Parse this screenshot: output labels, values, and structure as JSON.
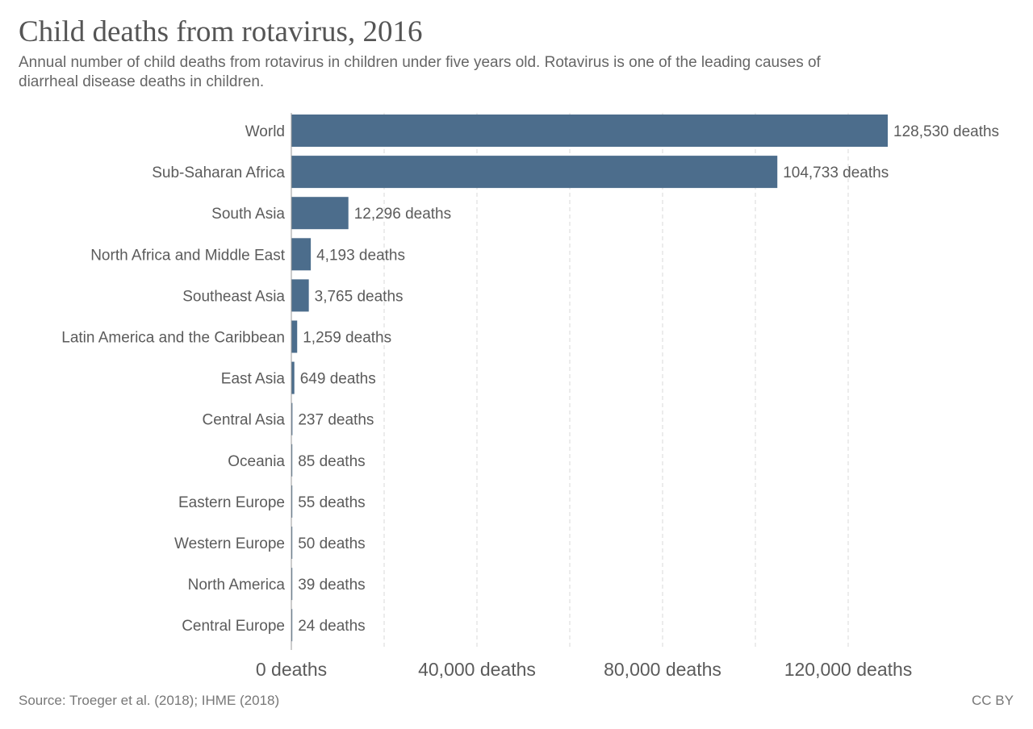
{
  "header": {
    "title": "Child deaths from rotavirus, 2016",
    "subtitle": "Annual number of child deaths from rotavirus in children under five years old. Rotavirus is one of the leading causes of diarrheal disease deaths in children."
  },
  "footer": {
    "source": "Source: Troeger et al. (2018); IHME (2018)",
    "license": "CC BY"
  },
  "colors": {
    "bar": "#4c6d8c",
    "grid": "#d9d9d9",
    "text": "#5b5b5b"
  },
  "chart_data": {
    "type": "bar",
    "orientation": "horizontal",
    "title": "Child deaths from rotavirus, 2016",
    "categories": [
      "World",
      "Sub-Saharan Africa",
      "South Asia",
      "North Africa and Middle East",
      "Southeast Asia",
      "Latin America and the Caribbean",
      "East Asia",
      "Central Asia",
      "Oceania",
      "Eastern Europe",
      "Western Europe",
      "North America",
      "Central Europe"
    ],
    "values": [
      128530,
      104733,
      12296,
      4193,
      3765,
      1259,
      649,
      237,
      85,
      55,
      50,
      39,
      24
    ],
    "value_labels": [
      "128,530 deaths",
      "104,733 deaths",
      "12,296 deaths",
      "4,193 deaths",
      "3,765 deaths",
      "1,259 deaths",
      "649 deaths",
      "237 deaths",
      "85 deaths",
      "55 deaths",
      "50 deaths",
      "39 deaths",
      "24 deaths"
    ],
    "xlim": [
      0,
      140000
    ],
    "x_ticks": [
      0,
      40000,
      80000,
      120000
    ],
    "x_tick_labels": [
      "0 deaths",
      "40,000 deaths",
      "80,000 deaths",
      "120,000 deaths"
    ],
    "x_gridlines": [
      20000,
      40000,
      60000,
      80000,
      100000,
      120000
    ],
    "grid": true,
    "legend": "none"
  }
}
